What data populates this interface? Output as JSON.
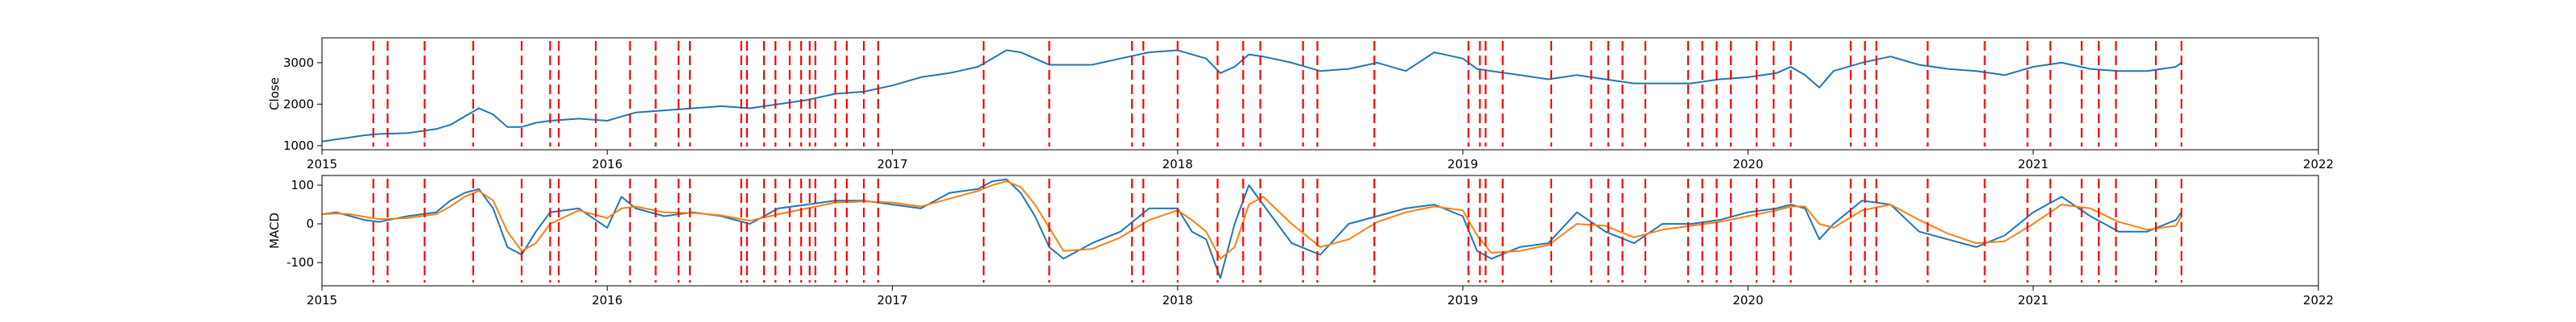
{
  "chart_data": [
    {
      "type": "line",
      "title": "",
      "xlabel": "",
      "ylabel": "Close",
      "xlim": [
        2015.0,
        2022.0
      ],
      "ylim": [
        900,
        3600
      ],
      "x_ticks": [
        "2015",
        "2016",
        "2017",
        "2018",
        "2019",
        "2020",
        "2021",
        "2022"
      ],
      "y_ticks": [
        1000,
        2000,
        3000
      ],
      "grid": false,
      "legend": "none",
      "series": [
        {
          "color": "#1f77b4",
          "x": [
            2015.0,
            2015.05,
            2015.1,
            2015.15,
            2015.2,
            2015.3,
            2015.4,
            2015.45,
            2015.5,
            2015.55,
            2015.6,
            2015.65,
            2015.7,
            2015.75,
            2015.8,
            2015.9,
            2016.0,
            2016.05,
            2016.1,
            2016.2,
            2016.3,
            2016.4,
            2016.5,
            2016.6,
            2016.7,
            2016.8,
            2016.9,
            2017.0,
            2017.1,
            2017.2,
            2017.3,
            2017.35,
            2017.4,
            2017.45,
            2017.5,
            2017.55,
            2017.6,
            2017.7,
            2017.8,
            2017.9,
            2018.0,
            2018.05,
            2018.1,
            2018.15,
            2018.2,
            2018.25,
            2018.3,
            2018.4,
            2018.5,
            2018.6,
            2018.7,
            2018.8,
            2018.9,
            2019.0,
            2019.05,
            2019.1,
            2019.2,
            2019.3,
            2019.4,
            2019.5,
            2019.6,
            2019.7,
            2019.8,
            2019.9,
            2020.0,
            2020.1,
            2020.15,
            2020.2,
            2020.25,
            2020.3,
            2020.4,
            2020.5,
            2020.6,
            2020.7,
            2020.8,
            2020.9,
            2021.0,
            2021.1,
            2021.2,
            2021.3,
            2021.4,
            2021.5,
            2021.52
          ],
          "values": [
            1100,
            1150,
            1200,
            1250,
            1280,
            1300,
            1400,
            1500,
            1700,
            1900,
            1750,
            1450,
            1450,
            1550,
            1600,
            1650,
            1600,
            1700,
            1800,
            1850,
            1900,
            1950,
            1900,
            2000,
            2100,
            2250,
            2300,
            2450,
            2650,
            2750,
            2900,
            3100,
            3300,
            3250,
            3100,
            2950,
            2950,
            2950,
            3100,
            3250,
            3300,
            3200,
            3100,
            2750,
            2900,
            3200,
            3150,
            3000,
            2800,
            2850,
            3000,
            2800,
            3250,
            3100,
            2850,
            2800,
            2700,
            2600,
            2700,
            2600,
            2500,
            2500,
            2500,
            2600,
            2650,
            2750,
            2900,
            2700,
            2400,
            2800,
            3000,
            3150,
            2950,
            2850,
            2800,
            2700,
            2900,
            3000,
            2850,
            2800,
            2800,
            2900,
            3000
          ]
        }
      ]
    },
    {
      "type": "line",
      "title": "",
      "xlabel": "",
      "ylabel": "MACD",
      "xlim": [
        2015.0,
        2022.0
      ],
      "ylim": [
        -160,
        125
      ],
      "x_ticks": [
        "2015",
        "2016",
        "2017",
        "2018",
        "2019",
        "2020",
        "2021",
        "2022"
      ],
      "y_ticks": [
        -100,
        0,
        100
      ],
      "grid": false,
      "legend": "none",
      "series": [
        {
          "color": "#1f77b4",
          "x": [
            2015.0,
            2015.05,
            2015.1,
            2015.15,
            2015.2,
            2015.3,
            2015.4,
            2015.45,
            2015.5,
            2015.55,
            2015.6,
            2015.65,
            2015.7,
            2015.75,
            2015.8,
            2015.9,
            2016.0,
            2016.05,
            2016.1,
            2016.2,
            2016.3,
            2016.4,
            2016.5,
            2016.6,
            2016.7,
            2016.8,
            2016.9,
            2017.0,
            2017.1,
            2017.2,
            2017.3,
            2017.35,
            2017.4,
            2017.45,
            2017.5,
            2017.55,
            2017.6,
            2017.7,
            2017.8,
            2017.9,
            2018.0,
            2018.05,
            2018.1,
            2018.15,
            2018.2,
            2018.25,
            2018.3,
            2018.4,
            2018.5,
            2018.6,
            2018.7,
            2018.8,
            2018.9,
            2019.0,
            2019.05,
            2019.1,
            2019.2,
            2019.3,
            2019.4,
            2019.5,
            2019.6,
            2019.7,
            2019.8,
            2019.9,
            2020.0,
            2020.1,
            2020.15,
            2020.2,
            2020.25,
            2020.3,
            2020.4,
            2020.5,
            2020.6,
            2020.7,
            2020.8,
            2020.9,
            2021.0,
            2021.1,
            2021.2,
            2021.3,
            2021.4,
            2021.5,
            2021.52
          ],
          "values": [
            25,
            30,
            20,
            10,
            5,
            20,
            30,
            60,
            80,
            90,
            40,
            -60,
            -80,
            -20,
            30,
            40,
            -10,
            70,
            40,
            20,
            30,
            20,
            0,
            40,
            50,
            60,
            60,
            50,
            40,
            80,
            90,
            110,
            115,
            80,
            20,
            -60,
            -90,
            -50,
            -20,
            40,
            40,
            -20,
            -40,
            -140,
            0,
            100,
            50,
            -50,
            -80,
            0,
            20,
            40,
            50,
            20,
            -70,
            -90,
            -60,
            -50,
            30,
            -20,
            -50,
            0,
            0,
            10,
            30,
            40,
            50,
            40,
            -40,
            0,
            60,
            50,
            -20,
            -40,
            -60,
            -30,
            30,
            70,
            20,
            -20,
            -20,
            10,
            30
          ]
        },
        {
          "color": "#ff7f0e",
          "x": [
            2015.0,
            2015.05,
            2015.1,
            2015.15,
            2015.2,
            2015.3,
            2015.4,
            2015.45,
            2015.5,
            2015.55,
            2015.6,
            2015.65,
            2015.7,
            2015.75,
            2015.8,
            2015.9,
            2016.0,
            2016.05,
            2016.1,
            2016.2,
            2016.3,
            2016.4,
            2016.5,
            2016.6,
            2016.7,
            2016.8,
            2016.9,
            2017.0,
            2017.1,
            2017.2,
            2017.3,
            2017.35,
            2017.4,
            2017.45,
            2017.5,
            2017.55,
            2017.6,
            2017.7,
            2017.8,
            2017.9,
            2018.0,
            2018.05,
            2018.1,
            2018.15,
            2018.2,
            2018.25,
            2018.3,
            2018.4,
            2018.5,
            2018.6,
            2018.7,
            2018.8,
            2018.9,
            2019.0,
            2019.05,
            2019.1,
            2019.2,
            2019.3,
            2019.4,
            2019.5,
            2019.6,
            2019.7,
            2019.8,
            2019.9,
            2020.0,
            2020.1,
            2020.15,
            2020.2,
            2020.25,
            2020.3,
            2020.4,
            2020.5,
            2020.6,
            2020.7,
            2020.8,
            2020.9,
            2021.0,
            2021.1,
            2021.2,
            2021.3,
            2021.4,
            2021.5,
            2021.52
          ],
          "values": [
            25,
            27,
            25,
            18,
            12,
            15,
            25,
            45,
            70,
            85,
            60,
            -20,
            -70,
            -50,
            0,
            35,
            15,
            40,
            45,
            30,
            28,
            22,
            8,
            25,
            40,
            55,
            58,
            55,
            45,
            65,
            85,
            100,
            110,
            95,
            50,
            -10,
            -70,
            -65,
            -35,
            10,
            35,
            10,
            -20,
            -90,
            -60,
            50,
            70,
            0,
            -60,
            -40,
            5,
            30,
            45,
            35,
            -30,
            -75,
            -70,
            -55,
            0,
            -5,
            -35,
            -15,
            -5,
            5,
            20,
            35,
            45,
            45,
            0,
            -10,
            35,
            50,
            10,
            -25,
            -50,
            -45,
            0,
            50,
            40,
            5,
            -15,
            -5,
            20
          ]
        }
      ]
    }
  ],
  "event_markers": {
    "color": "#ff0000",
    "x": [
      2015.18,
      2015.23,
      2015.36,
      2015.53,
      2015.7,
      2015.8,
      2015.83,
      2015.96,
      2016.08,
      2016.17,
      2016.25,
      2016.29,
      2016.47,
      2016.49,
      2016.55,
      2016.59,
      2016.64,
      2016.68,
      2016.71,
      2016.73,
      2016.8,
      2016.84,
      2016.9,
      2016.95,
      2017.32,
      2017.55,
      2017.84,
      2017.88,
      2018.0,
      2018.14,
      2018.23,
      2018.29,
      2018.44,
      2018.49,
      2018.69,
      2019.02,
      2019.06,
      2019.08,
      2019.14,
      2019.31,
      2019.45,
      2019.51,
      2019.56,
      2019.64,
      2019.79,
      2019.84,
      2019.89,
      2019.94,
      2020.03,
      2020.09,
      2020.15,
      2020.36,
      2020.41,
      2020.45,
      2020.63,
      2020.83,
      2020.98,
      2021.06,
      2021.17,
      2021.23,
      2021.29,
      2021.43,
      2021.52
    ]
  }
}
